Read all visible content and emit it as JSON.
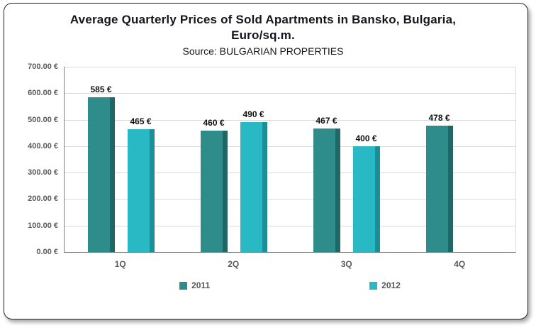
{
  "chart_data": {
    "type": "bar",
    "title": "Average Quarterly Prices of Sold Apartments in Bansko, Bulgaria, Euro/sq.m.",
    "title_display": "Average Quarterly Prices of Sold Apartments in Bansko, Bulgaria,\nEuro/sq.m.",
    "subtitle": "Source: BULGARIAN PROPERTIES",
    "categories": [
      "1Q",
      "2Q",
      "3Q",
      "4Q"
    ],
    "series": [
      {
        "name": "2011",
        "color": "#2e8c8a",
        "edge_color": "#1f6866",
        "values": [
          585,
          460,
          467,
          478
        ],
        "labels": [
          "585 €",
          "460 €",
          "467 €",
          "478 €"
        ]
      },
      {
        "name": "2012",
        "color": "#29b9c5",
        "edge_color": "#1d8d97",
        "values": [
          465,
          490,
          400,
          null
        ],
        "labels": [
          "465 €",
          "490 €",
          "400 €",
          null
        ]
      }
    ],
    "ylim": [
      0,
      700
    ],
    "ytick_labels": [
      "700.00 €",
      "600.00 €",
      "500.00 €",
      "400.00 €",
      "300.00 €",
      "200.00 €",
      "100.00 €",
      "0.00 €"
    ],
    "grid": true,
    "legend_position": "bottom"
  }
}
